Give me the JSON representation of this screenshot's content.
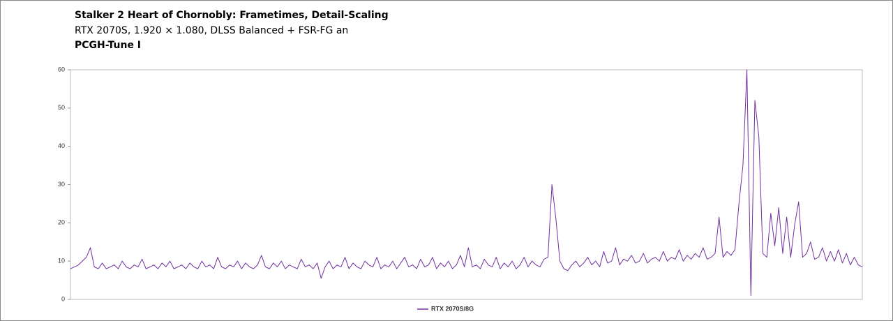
{
  "chart_data": {
    "type": "line",
    "title": "Stalker 2 Heart of Chornobly: Frametimes, Detail-Scaling",
    "subtitle": "RTX 2070S, 1.920 × 1.080, DLSS Balanced + FSR-FG an",
    "annotation": "PCGH-Tune I",
    "ylim": [
      0,
      60
    ],
    "yticks": [
      0,
      10,
      20,
      30,
      40,
      50,
      60
    ],
    "legend": "bottom",
    "series": [
      {
        "name": "RTX 2070S/8G",
        "color": "#7030a0",
        "values": [
          8,
          8.5,
          9,
          10,
          11,
          13.5,
          8.5,
          8,
          9.5,
          8,
          8.5,
          9,
          8,
          10,
          8.5,
          8,
          9,
          8.5,
          10.5,
          8,
          8.5,
          9,
          8,
          9.5,
          8.5,
          10,
          8,
          8.5,
          9,
          8,
          9.5,
          8.5,
          8,
          10,
          8.5,
          9,
          8,
          11,
          8.5,
          8,
          9,
          8.5,
          10,
          8,
          9.5,
          8.5,
          8,
          9,
          11.5,
          8.5,
          8,
          9.5,
          8.5,
          10,
          8,
          9,
          8.5,
          8,
          10.5,
          8.5,
          9,
          8,
          9.5,
          5.5,
          8.5,
          10,
          8,
          9,
          8.5,
          11,
          8,
          9.5,
          8.5,
          8,
          10,
          9,
          8.5,
          11,
          8,
          9,
          8.5,
          10,
          8,
          9.5,
          11,
          8.5,
          9,
          8,
          10.5,
          8.5,
          9,
          11,
          8,
          9.5,
          8.5,
          10,
          8,
          9,
          11.5,
          8.5,
          13.5,
          8.5,
          9,
          8,
          10.5,
          9,
          8.5,
          11,
          8,
          9.5,
          8.5,
          10,
          8,
          9,
          11,
          8.5,
          10,
          9,
          8.5,
          10.5,
          11,
          30,
          21,
          10,
          8,
          7.5,
          9,
          10,
          8.5,
          9.5,
          11,
          9,
          10,
          8.5,
          12.5,
          9.5,
          10,
          13.5,
          9,
          10.5,
          10,
          11.5,
          9.5,
          10,
          12,
          9.5,
          10.5,
          11,
          10,
          12.5,
          10,
          11,
          10.5,
          13,
          10,
          11.5,
          10.5,
          12,
          11,
          13.5,
          10.5,
          11,
          12,
          21.5,
          11,
          12.5,
          11.5,
          13,
          25,
          35,
          60,
          1,
          52,
          42.5,
          12,
          11,
          22.5,
          14,
          24,
          12,
          21.5,
          11,
          19.5,
          25.5,
          11,
          12,
          15,
          10.5,
          11,
          13.5,
          10,
          12.5,
          10,
          13,
          9.5,
          12,
          9,
          11,
          9,
          8.5
        ]
      }
    ]
  }
}
